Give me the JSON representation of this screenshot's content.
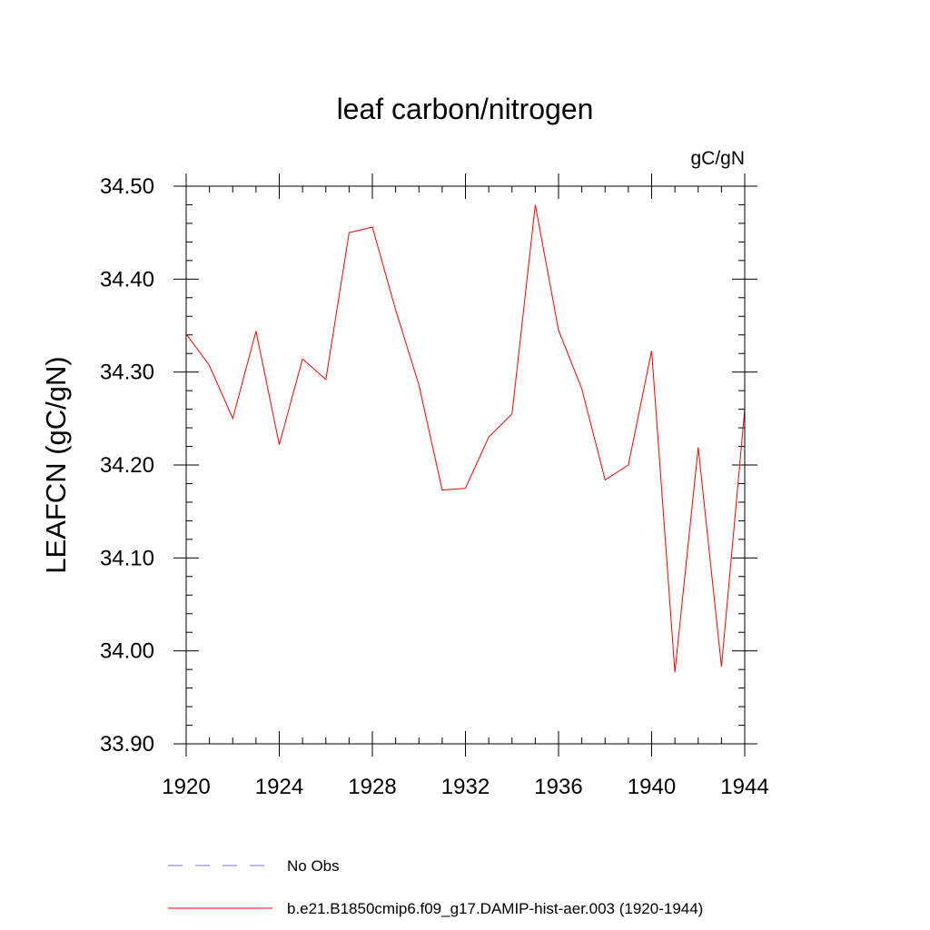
{
  "chart_data": {
    "type": "line",
    "title": "leaf carbon/nitrogen",
    "units_label": "gC/gN",
    "ylabel": "LEAFCN  (gC/gN)",
    "xlabel": "",
    "xlim": [
      1920,
      1944
    ],
    "ylim": [
      33.9,
      34.5
    ],
    "x_ticks": [
      "1920",
      "1924",
      "1928",
      "1932",
      "1936",
      "1940",
      "1944"
    ],
    "y_ticks": [
      "33.90",
      "34.00",
      "34.10",
      "34.20",
      "34.30",
      "34.40",
      "34.50"
    ],
    "grid": false,
    "series": [
      {
        "name": "b.e21.B1850cmip6.f09_g17.DAMIP-hist-aer.003 (1920-1944)",
        "color": "#ff0000",
        "style": "solid",
        "x": [
          1920,
          1921,
          1922,
          1923,
          1924,
          1925,
          1926,
          1927,
          1928,
          1929,
          1930,
          1931,
          1932,
          1933,
          1934,
          1935,
          1936,
          1937,
          1938,
          1939,
          1940,
          1941,
          1942,
          1943,
          1944
        ],
        "y": [
          34.341,
          34.307,
          34.25,
          34.344,
          34.222,
          34.314,
          34.292,
          34.45,
          34.456,
          34.367,
          34.286,
          34.173,
          34.175,
          34.23,
          34.255,
          34.48,
          34.345,
          34.282,
          34.184,
          34.2,
          34.323,
          33.977,
          34.219,
          33.983,
          34.26
        ]
      }
    ],
    "legend": [
      {
        "label": "No Obs",
        "color": "#7777cc",
        "style": "dashed"
      },
      {
        "label": "b.e21.B1850cmip6.f09_g17.DAMIP-hist-aer.003 (1920-1944)",
        "color": "#ff0000",
        "style": "solid"
      }
    ],
    "legend_placement": "bottom"
  }
}
